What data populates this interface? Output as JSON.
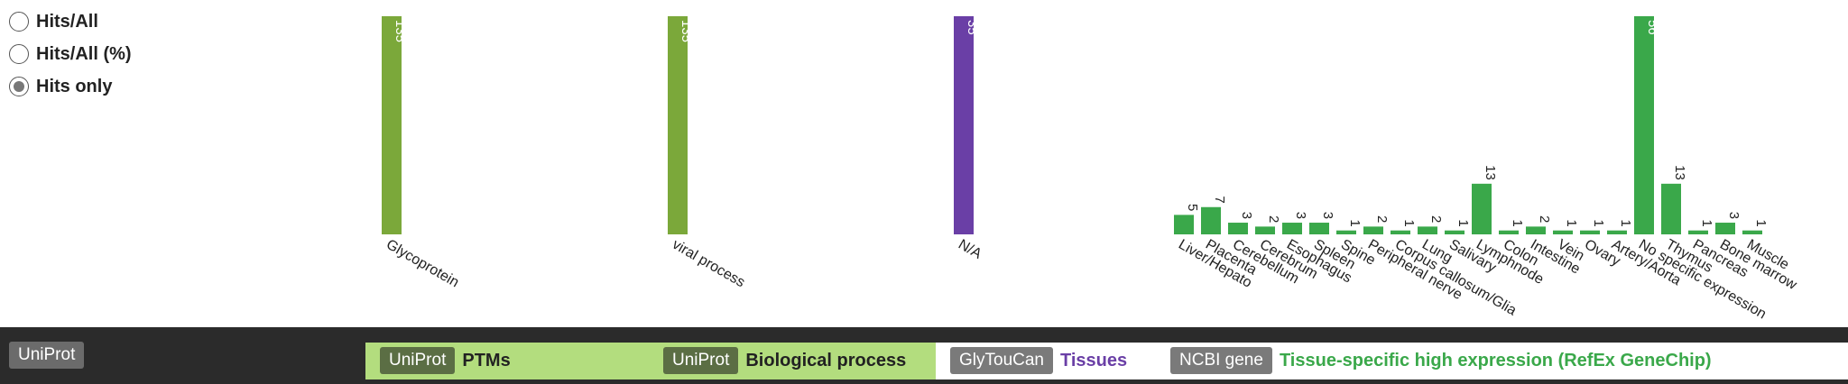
{
  "radios": [
    {
      "label": "Hits/All",
      "checked": false
    },
    {
      "label": "Hits/All (%)",
      "checked": false
    },
    {
      "label": "Hits only",
      "checked": true
    }
  ],
  "colors": {
    "uniprot_green": "#7ba83a",
    "glytoucan_purple": "#6a3fa6",
    "ncbi_green": "#3aa84a"
  },
  "footer": {
    "left_tag": "UniProt",
    "sections": [
      {
        "source": "UniProt",
        "title": "PTMs",
        "title_color": "#1a1a1a"
      },
      {
        "source": "UniProt",
        "title": "Biological process",
        "title_color": "#1a1a1a"
      },
      {
        "source": "GlyTouCan",
        "title": "Tissues",
        "title_color": "#6a3fa6"
      },
      {
        "source": "NCBI gene",
        "title": "Tissue-specific high expression (RefEx GeneChip)",
        "title_color": "#3aa84a"
      }
    ]
  },
  "chart_data": [
    {
      "type": "bar",
      "title": "PTMs",
      "categories": [
        "Glycoprotein"
      ],
      "values": [
        135
      ],
      "ylim": [
        0,
        135
      ],
      "color": "#7ba83a"
    },
    {
      "type": "bar",
      "title": "Biological process",
      "categories": [
        "viral process"
      ],
      "values": [
        135
      ],
      "ylim": [
        0,
        135
      ],
      "color": "#7ba83a"
    },
    {
      "type": "bar",
      "title": "Tissues",
      "categories": [
        "N/A"
      ],
      "values": [
        35
      ],
      "ylim": [
        0,
        35
      ],
      "color": "#6a3fa6"
    },
    {
      "type": "bar",
      "title": "Tissue-specific high expression (RefEx GeneChip)",
      "categories": [
        "Liver/Hepato",
        "Placenta",
        "Cerebellum",
        "Cerebrum",
        "Esophagus",
        "Spleen",
        "Spine",
        "Peripheral nerve",
        "Corpus callosum/Glia",
        "Lung",
        "Salivary",
        "Lymphnode",
        "Colon",
        "Intestine",
        "Vein",
        "Ovary",
        "Artery/Aorta",
        "No specific expression",
        "Thymus",
        "Pancreas",
        "Bone marrow",
        "Muscle"
      ],
      "values": [
        5,
        7,
        3,
        2,
        3,
        3,
        1,
        2,
        1,
        2,
        1,
        13,
        1,
        2,
        1,
        1,
        1,
        56,
        13,
        1,
        3,
        1
      ],
      "ylim": [
        0,
        56
      ],
      "color": "#3aa84a"
    }
  ]
}
